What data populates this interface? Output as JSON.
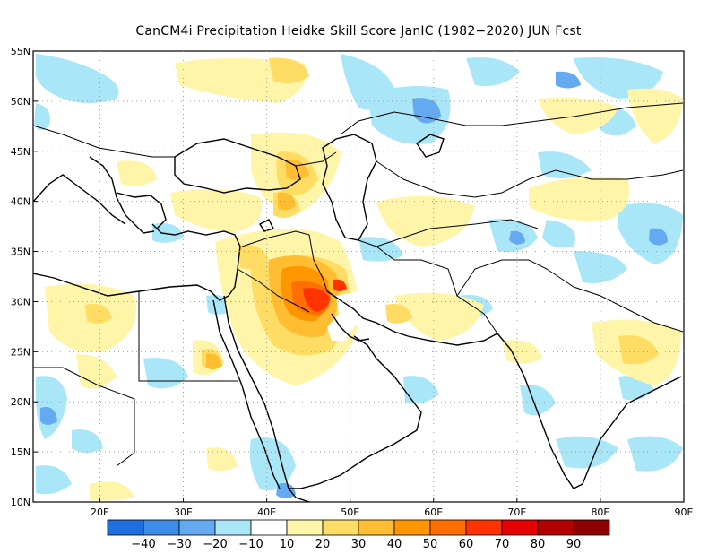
{
  "title": "CanCM4i  Precipitation Heidke Skill Score JanIC (1982−2020) JUN Fcst",
  "map": {
    "lon_range": [
      12,
      90
    ],
    "lat_range": [
      10,
      55
    ],
    "x_ticks": [
      "20E",
      "30E",
      "40E",
      "50E",
      "60E",
      "70E",
      "80E",
      "90E"
    ],
    "y_ticks": [
      "10N",
      "15N",
      "20N",
      "25N",
      "30N",
      "35N",
      "40N",
      "45N",
      "50N",
      "55N"
    ],
    "grid": "dotted"
  },
  "colorbar": {
    "labels": [
      "−40",
      "−30",
      "−20",
      "−10",
      "10",
      "20",
      "30",
      "40",
      "50",
      "60",
      "70",
      "80",
      "90"
    ],
    "colors": [
      "#1e6fe0",
      "#3c8ce8",
      "#64aaf0",
      "#a8e6f8",
      "#ffffff",
      "#fff5a8",
      "#ffdc64",
      "#ffbe32",
      "#ff9600",
      "#ff6e00",
      "#ff3200",
      "#e60000",
      "#b40000",
      "#8c0000"
    ]
  }
}
